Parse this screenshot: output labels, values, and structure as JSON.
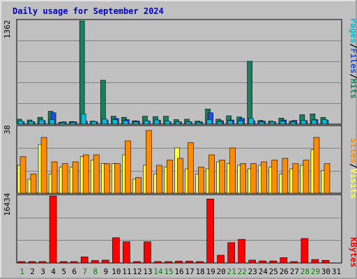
{
  "title": "Daily usage for September 2024",
  "chart_data": [
    {
      "type": "bar",
      "panel": "top",
      "max_label": "1362",
      "ylim": [
        0,
        1362
      ],
      "grid": true,
      "legend_labels": [
        "Pages",
        "Files",
        "Hits"
      ],
      "legend_separator": "/",
      "categories": [
        "1",
        "2",
        "3",
        "4",
        "5",
        "6",
        "7",
        "8",
        "9",
        "10",
        "11",
        "12",
        "13",
        "14",
        "15",
        "16",
        "17",
        "18",
        "19",
        "20",
        "21",
        "22",
        "23",
        "24",
        "25",
        "26",
        "27",
        "28",
        "29",
        "30",
        "31"
      ],
      "weekend_days": [
        "1",
        "7",
        "8",
        "14",
        "15",
        "21",
        "22",
        "28",
        "29"
      ],
      "series": [
        {
          "name": "Pages",
          "color": "#00bcd4",
          "values": [
            40,
            35,
            55,
            60,
            20,
            25,
            135,
            35,
            70,
            60,
            45,
            30,
            45,
            55,
            40,
            30,
            30,
            25,
            60,
            35,
            45,
            45,
            75,
            30,
            30,
            40,
            30,
            50,
            55,
            60,
            0
          ]
        },
        {
          "name": "Files",
          "color": "#2050e0",
          "values": [
            30,
            30,
            45,
            150,
            30,
            30,
            40,
            30,
            50,
            75,
            60,
            40,
            40,
            50,
            30,
            30,
            30,
            30,
            150,
            45,
            55,
            75,
            45,
            40,
            30,
            55,
            50,
            45,
            60,
            50,
            0
          ]
        },
        {
          "name": "Hits",
          "color": "#188060",
          "values": [
            65,
            55,
            90,
            170,
            25,
            35,
            1362,
            40,
            580,
            105,
            90,
            45,
            105,
            100,
            105,
            60,
            65,
            40,
            200,
            65,
            110,
            95,
            830,
            50,
            40,
            80,
            40,
            125,
            135,
            90,
            0
          ]
        }
      ]
    },
    {
      "type": "bar",
      "panel": "middle",
      "max_label": "38",
      "ylim": [
        0,
        38
      ],
      "grid": true,
      "legend_labels": [
        "Sites",
        "Visits"
      ],
      "legend_separator": "/",
      "categories": [
        "1",
        "2",
        "3",
        "4",
        "5",
        "6",
        "7",
        "8",
        "9",
        "10",
        "11",
        "12",
        "13",
        "14",
        "15",
        "16",
        "17",
        "18",
        "19",
        "20",
        "21",
        "22",
        "23",
        "24",
        "25",
        "26",
        "27",
        "28",
        "29",
        "30",
        "31"
      ],
      "series": [
        {
          "name": "Visits",
          "color": "#ffff44",
          "values": [
            16,
            8,
            28,
            11,
            15,
            15,
            21,
            19,
            17,
            17,
            22,
            8,
            16,
            11,
            15,
            26,
            14,
            11,
            14,
            18,
            17,
            16,
            14,
            16,
            15,
            11,
            14,
            16,
            25,
            13,
            0
          ]
        },
        {
          "name": "Sites",
          "color": "#ff8c00",
          "values": [
            21,
            11,
            32,
            18,
            17,
            18,
            22,
            22,
            17,
            17,
            30,
            9,
            36,
            16,
            19,
            20,
            29,
            15,
            22,
            19,
            26,
            17,
            17,
            18,
            19,
            20,
            17,
            19,
            32,
            17,
            0
          ]
        }
      ]
    },
    {
      "type": "bar",
      "panel": "bottom",
      "max_label": "16434",
      "ylim": [
        0,
        16434
      ],
      "grid": true,
      "legend_labels": [
        "KBytes"
      ],
      "categories": [
        "1",
        "2",
        "3",
        "4",
        "5",
        "6",
        "7",
        "8",
        "9",
        "10",
        "11",
        "12",
        "13",
        "14",
        "15",
        "16",
        "17",
        "18",
        "19",
        "20",
        "21",
        "22",
        "23",
        "24",
        "25",
        "26",
        "27",
        "28",
        "29",
        "30",
        "31"
      ],
      "series": [
        {
          "name": "KBytes",
          "color": "#ff0000",
          "values": [
            320,
            320,
            350,
            16434,
            300,
            300,
            1500,
            600,
            700,
            6200,
            5200,
            200,
            5200,
            350,
            300,
            450,
            450,
            300,
            15700,
            1900,
            5000,
            5800,
            700,
            500,
            500,
            1300,
            300,
            6000,
            850,
            650,
            0
          ]
        }
      ]
    }
  ],
  "colors": {
    "pages": "#00bcd4",
    "files": "#2050e0",
    "hits": "#188060",
    "visits": "#ffff44",
    "sites": "#ff8c00",
    "kbytes": "#ff0000",
    "weekend_label": "#007f00",
    "weekday_label": "#000000",
    "plot_bg": "#c0c0c0",
    "title": "#0000cc"
  }
}
